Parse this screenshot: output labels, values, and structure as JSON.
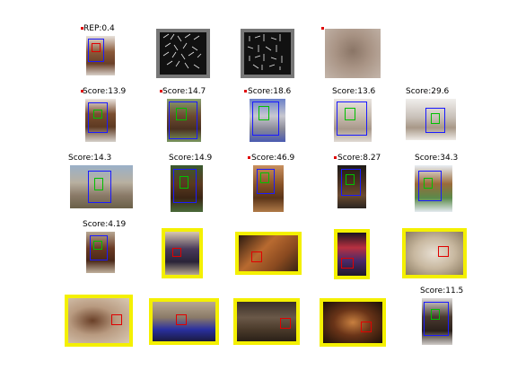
{
  "labels": {
    "r0c0": "REP:0.4",
    "r1c0": "Score:13.9",
    "r1c1": "Score:14.7",
    "r1c2": "Score:18.6",
    "r1c3": "Score:13.6",
    "r1c4": "Score:29.6",
    "r2c0": "Score:14.3",
    "r2c1": "Score:14.9",
    "r2c2": "Score:46.9",
    "r2c3": "Score:8.27",
    "r2c4": "Score:34.3",
    "r3c0": "Score:4.19",
    "r4c4": "Score:11.5"
  },
  "colors": {
    "detection_box": "#1a1aff",
    "part_box": "#00c000",
    "false_positive_box": "#e00000",
    "false_positive_frame": "#f4f000",
    "hog_background": "#111111",
    "hog_frame": "#777777"
  }
}
